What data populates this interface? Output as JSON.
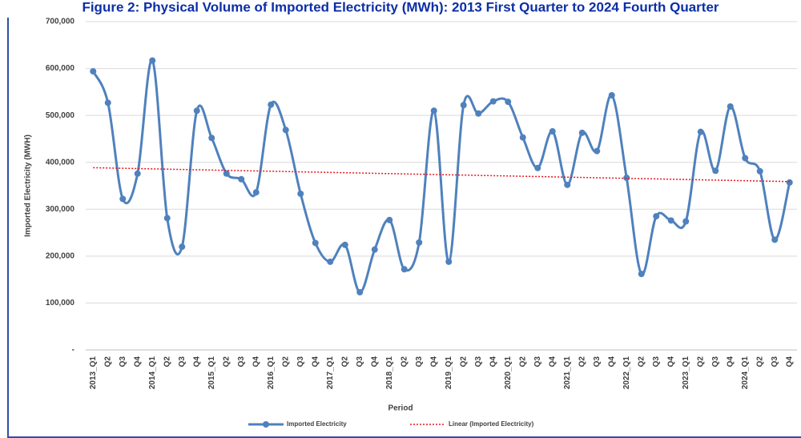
{
  "chart_data": {
    "type": "line",
    "title": "Figure 2: Physical Volume of Imported Electricity (MWh): 2013 First Quarter to 2024 Fourth Quarter",
    "x_label": "Period",
    "y_label": "Imported Electricity (MWH)",
    "categories": [
      "2013_Q1",
      "Q2",
      "Q3",
      "Q4",
      "2014_Q1",
      "Q2",
      "Q3",
      "Q4",
      "2015_Q1",
      "Q2",
      "Q3",
      "Q4",
      "2016_Q1",
      "Q2",
      "Q3",
      "Q4",
      "2017_Q1",
      "Q2",
      "Q3",
      "Q4",
      "2018_Q1",
      "Q2",
      "Q3",
      "Q4",
      "2019_Q1",
      "Q2",
      "Q3",
      "Q4",
      "2020_Q1",
      "Q2",
      "Q3",
      "Q4",
      "2021_Q1",
      "Q2",
      "Q3",
      "Q4",
      "2022_Q1",
      "Q2",
      "Q3",
      "Q4",
      "2023_Q1",
      "Q2",
      "Q3",
      "Q4",
      "2024_Q1",
      "Q2",
      "Q3",
      "Q4"
    ],
    "series": [
      {
        "name": "Imported Electricity",
        "color": "#4f81bd",
        "values": [
          594000,
          527000,
          322000,
          376000,
          617000,
          281000,
          220000,
          510000,
          452000,
          376000,
          364000,
          336000,
          523000,
          469000,
          333000,
          228000,
          188000,
          224000,
          123000,
          214000,
          277000,
          172000,
          229000,
          510000,
          188000,
          522000,
          504000,
          530000,
          529000,
          453000,
          388000,
          466000,
          352000,
          463000,
          424000,
          543000,
          367000,
          162000,
          285000,
          276000,
          274000,
          465000,
          382000,
          519000,
          409000,
          381000,
          235000,
          357000
        ]
      }
    ],
    "trendline": {
      "name": "Linear (Imported Electricity)",
      "color": "#e8141c"
    },
    "ylim": [
      0,
      700000
    ],
    "yticks": [
      {
        "value": 0,
        "label": "-"
      },
      {
        "value": 100000,
        "label": "100,000"
      },
      {
        "value": 200000,
        "label": "200,000"
      },
      {
        "value": 300000,
        "label": "300,000"
      },
      {
        "value": 400000,
        "label": "400,000"
      },
      {
        "value": 500000,
        "label": "500,000"
      },
      {
        "value": 600000,
        "label": "600,000"
      },
      {
        "value": 700000,
        "label": "700,000"
      }
    ],
    "grid": true,
    "legend": "bottom"
  }
}
